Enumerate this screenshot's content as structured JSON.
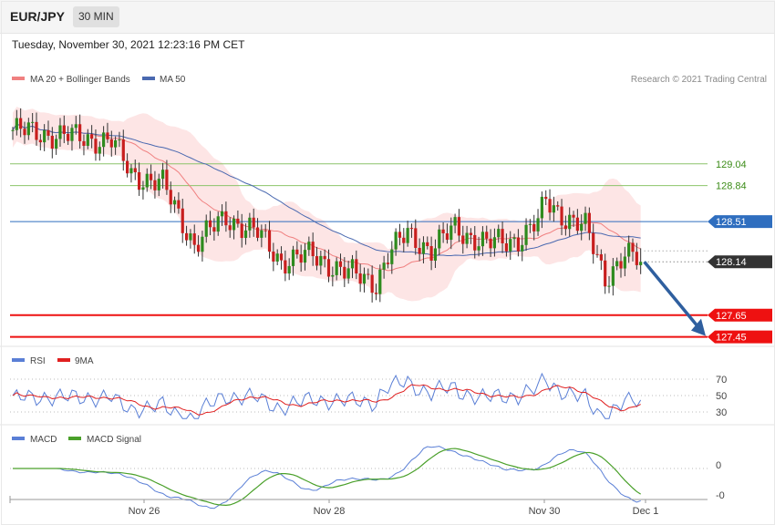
{
  "header": {
    "symbol": "EUR/JPY",
    "timeframe": "30 MIN",
    "timestamp": "Tuesday, November 30, 2021 12:23:16 PM CET",
    "copyright": "Research © 2021 Trading Central"
  },
  "colors": {
    "up": "#2e8b1e",
    "down": "#c81e1e",
    "ma20": "#f08080",
    "ma50": "#4a69b0",
    "band_fill": "#fde0e0",
    "resistance": "#8cc46a",
    "pivot": "#2f6ebf",
    "support": "#ee1111",
    "rsi": "#5a7fd6",
    "rsi_ma": "#e02020",
    "macd": "#5a7fd6",
    "macd_signal": "#4aa02a",
    "arrow": "#2f5f9f"
  },
  "chart_data": [
    {
      "type": "candlestick",
      "title": "EUR/JPY",
      "legend": [
        "MA 20 + Bollinger Bands",
        "MA 50"
      ],
      "legend_placement": "top-left",
      "ylim": [
        127.38,
        129.75
      ],
      "x_ticks": [
        "Nov 26",
        "Nov 28",
        "Nov 30",
        "Dec 1"
      ],
      "last_price": 128.14,
      "price_levels": [
        {
          "label": "129.04",
          "value": 129.04,
          "kind": "resistance"
        },
        {
          "label": "128.84",
          "value": 128.84,
          "kind": "resistance"
        },
        {
          "label": "128.51",
          "value": 128.51,
          "kind": "pivot"
        },
        {
          "label": "127.65",
          "value": 127.65,
          "kind": "support"
        },
        {
          "label": "127.45",
          "value": 127.45,
          "kind": "support"
        }
      ],
      "forecast_arrow": {
        "from": 128.14,
        "to": 127.45
      }
    },
    {
      "type": "line",
      "title": "RSI",
      "legend": [
        "RSI",
        "9MA"
      ],
      "legend_placement": "top-left",
      "y_ticks": [
        "70",
        "50",
        "30"
      ],
      "levels": [
        70,
        50,
        30
      ]
    },
    {
      "type": "line",
      "title": "MACD",
      "legend": [
        "MACD",
        "MACD Signal"
      ],
      "legend_placement": "top-left",
      "y_ticks": [
        "0",
        "-0"
      ]
    }
  ]
}
